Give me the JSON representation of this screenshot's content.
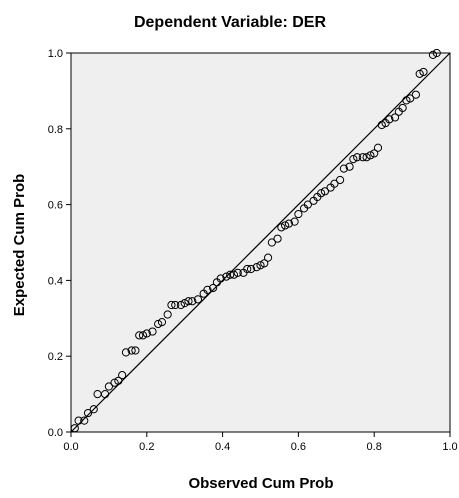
{
  "chart_data": {
    "type": "scatter",
    "title": "Dependent Variable: DER",
    "xlabel": "Observed Cum Prob",
    "ylabel": "Expected Cum Prob",
    "xlim": [
      0,
      1
    ],
    "ylim": [
      0,
      1
    ],
    "xticks": [
      "0.0",
      "0.2",
      "0.4",
      "0.6",
      "0.8",
      "1.0"
    ],
    "yticks": [
      "0.0",
      "0.2",
      "0.4",
      "0.6",
      "0.8",
      "1.0"
    ],
    "grid": false,
    "reference_line": [
      [
        0,
        0
      ],
      [
        1,
        1
      ]
    ],
    "colors": {
      "plot_bg": "#efefef",
      "marker": "#000000",
      "line": "#000000"
    },
    "points": [
      [
        0.01,
        0.01
      ],
      [
        0.02,
        0.03
      ],
      [
        0.035,
        0.03
      ],
      [
        0.045,
        0.05
      ],
      [
        0.06,
        0.06
      ],
      [
        0.07,
        0.1
      ],
      [
        0.09,
        0.1
      ],
      [
        0.1,
        0.12
      ],
      [
        0.115,
        0.13
      ],
      [
        0.125,
        0.135
      ],
      [
        0.135,
        0.15
      ],
      [
        0.145,
        0.21
      ],
      [
        0.16,
        0.215
      ],
      [
        0.17,
        0.215
      ],
      [
        0.18,
        0.255
      ],
      [
        0.19,
        0.255
      ],
      [
        0.2,
        0.26
      ],
      [
        0.215,
        0.265
      ],
      [
        0.23,
        0.285
      ],
      [
        0.24,
        0.29
      ],
      [
        0.255,
        0.31
      ],
      [
        0.265,
        0.335
      ],
      [
        0.275,
        0.335
      ],
      [
        0.29,
        0.335
      ],
      [
        0.3,
        0.34
      ],
      [
        0.31,
        0.345
      ],
      [
        0.32,
        0.345
      ],
      [
        0.335,
        0.35
      ],
      [
        0.35,
        0.365
      ],
      [
        0.36,
        0.375
      ],
      [
        0.375,
        0.38
      ],
      [
        0.385,
        0.395
      ],
      [
        0.395,
        0.405
      ],
      [
        0.41,
        0.41
      ],
      [
        0.42,
        0.415
      ],
      [
        0.43,
        0.415
      ],
      [
        0.44,
        0.42
      ],
      [
        0.455,
        0.42
      ],
      [
        0.465,
        0.43
      ],
      [
        0.475,
        0.43
      ],
      [
        0.49,
        0.435
      ],
      [
        0.5,
        0.44
      ],
      [
        0.51,
        0.445
      ],
      [
        0.52,
        0.46
      ],
      [
        0.53,
        0.5
      ],
      [
        0.545,
        0.51
      ],
      [
        0.555,
        0.54
      ],
      [
        0.565,
        0.545
      ],
      [
        0.575,
        0.55
      ],
      [
        0.59,
        0.555
      ],
      [
        0.6,
        0.575
      ],
      [
        0.615,
        0.59
      ],
      [
        0.625,
        0.6
      ],
      [
        0.64,
        0.61
      ],
      [
        0.65,
        0.62
      ],
      [
        0.66,
        0.63
      ],
      [
        0.67,
        0.635
      ],
      [
        0.685,
        0.645
      ],
      [
        0.695,
        0.655
      ],
      [
        0.71,
        0.665
      ],
      [
        0.72,
        0.695
      ],
      [
        0.735,
        0.7
      ],
      [
        0.745,
        0.72
      ],
      [
        0.755,
        0.725
      ],
      [
        0.77,
        0.725
      ],
      [
        0.78,
        0.725
      ],
      [
        0.79,
        0.73
      ],
      [
        0.8,
        0.735
      ],
      [
        0.81,
        0.75
      ],
      [
        0.82,
        0.81
      ],
      [
        0.83,
        0.815
      ],
      [
        0.84,
        0.825
      ],
      [
        0.855,
        0.83
      ],
      [
        0.865,
        0.845
      ],
      [
        0.875,
        0.855
      ],
      [
        0.885,
        0.875
      ],
      [
        0.895,
        0.88
      ],
      [
        0.91,
        0.89
      ],
      [
        0.92,
        0.945
      ],
      [
        0.93,
        0.95
      ],
      [
        0.955,
        0.995
      ],
      [
        0.965,
        1.0
      ]
    ]
  }
}
